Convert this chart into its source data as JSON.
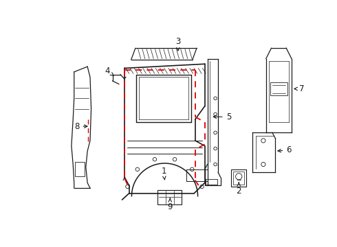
{
  "background_color": "#ffffff",
  "fig_width": 4.9,
  "fig_height": 3.6,
  "dpi": 100,
  "line_color": "#1a1a1a",
  "dashed_color": "#dd0000",
  "label_color": "#1a1a1a"
}
